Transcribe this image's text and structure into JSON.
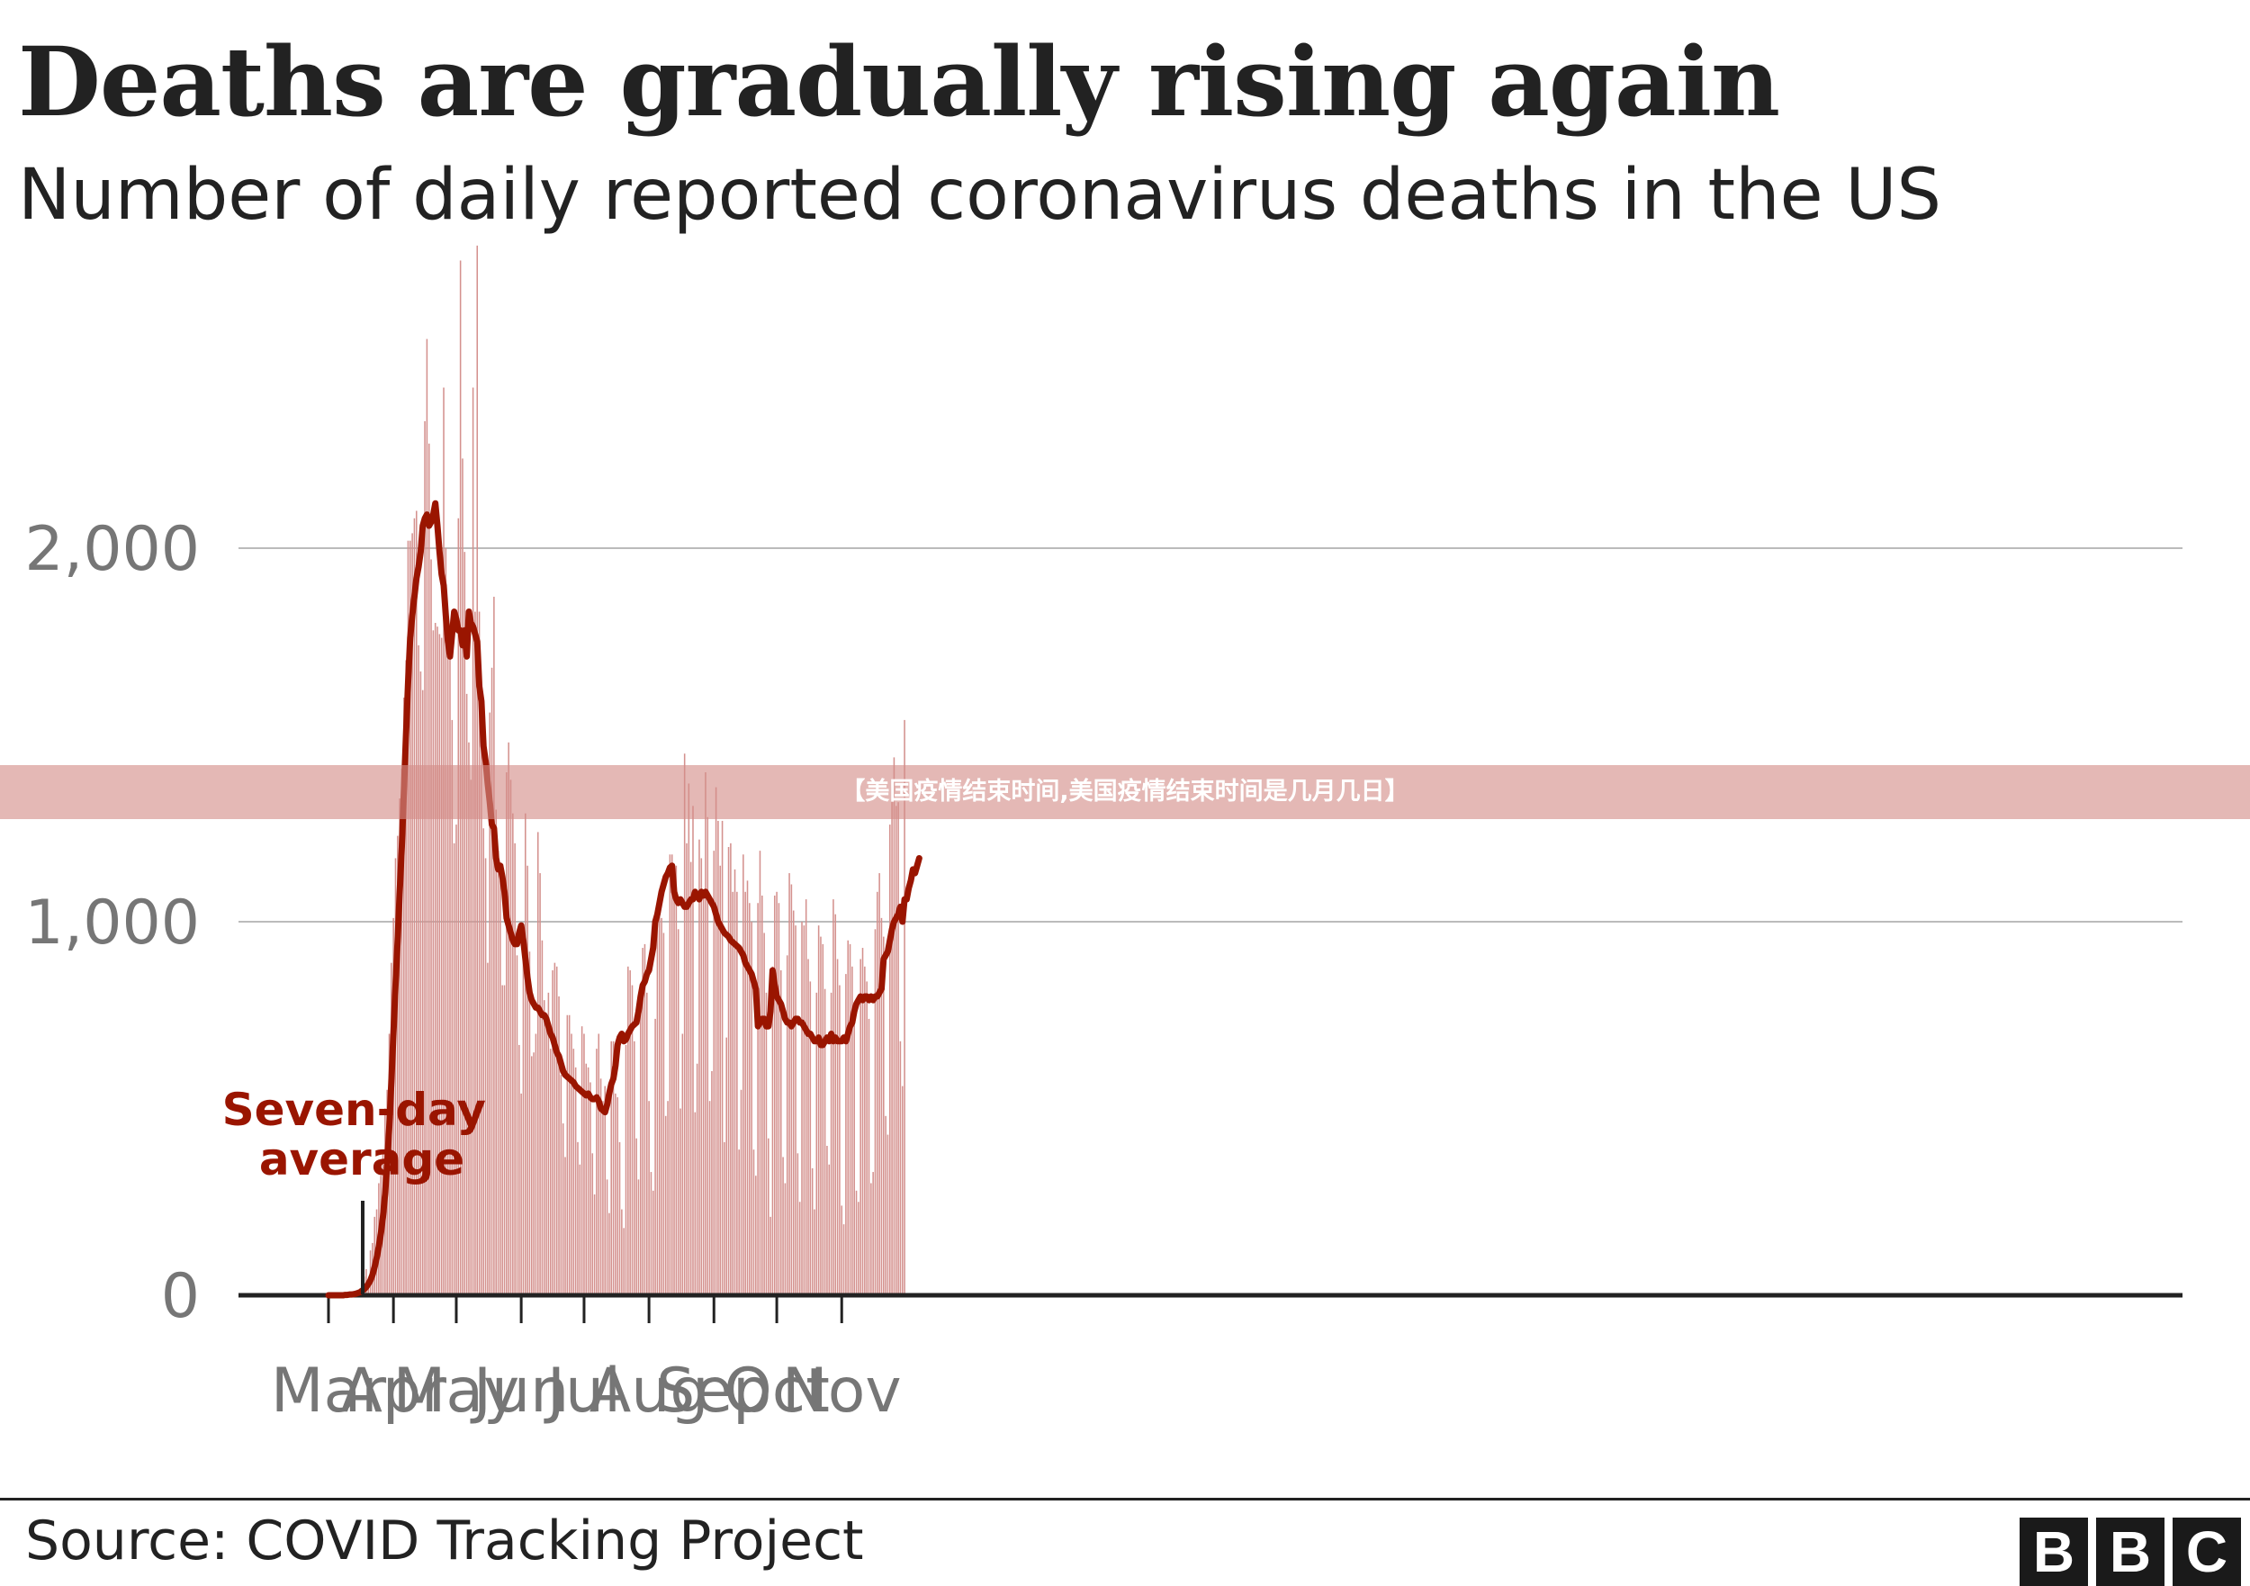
{
  "header": {
    "title": "Deaths are gradually rising again",
    "subtitle": "Number of daily reported coronavirus deaths in the US"
  },
  "footer": {
    "source": "Source: COVID Tracking Project",
    "logo": [
      "B",
      "B",
      "C"
    ]
  },
  "overlay": {
    "banner_text": "【美国疫情结束时间,美国疫情结束时间是几月几日】"
  },
  "colors": {
    "bar": "#d4918e",
    "line": "#9a1500",
    "annotation": "#9a1500",
    "grid": "#bbbbbb",
    "axis": "#222222",
    "tick_label": "#767676"
  },
  "chart_data": {
    "type": "bar",
    "title": "Deaths are gradually rising again",
    "subtitle": "Number of daily reported coronavirus deaths in the US",
    "x_start": "2020-03-01",
    "x_ticks": [
      "Mar",
      "Apr",
      "May",
      "Jun",
      "Jul",
      "Aug",
      "Sep",
      "Oct",
      "Nov"
    ],
    "y_ticks": [
      "0",
      "1,000",
      "2,000"
    ],
    "ylim": [
      0,
      2800
    ],
    "grid": true,
    "annotation": "Seven-day average",
    "series": [
      {
        "kind": "bar",
        "values": [
          0,
          0,
          0,
          0,
          0,
          0,
          0,
          1,
          1,
          2,
          3,
          3,
          5,
          8,
          12,
          18,
          25,
          50,
          70,
          40,
          120,
          140,
          210,
          230,
          300,
          320,
          390,
          500,
          550,
          700,
          890,
          1010,
          1170,
          1230,
          1330,
          1410,
          1600,
          1700,
          2020,
          2020,
          2040,
          2080,
          2100,
          1740,
          1670,
          1620,
          2340,
          2560,
          2280,
          1970,
          1780,
          1800,
          1790,
          1770,
          1760,
          2430,
          2000,
          1800,
          1710,
          1540,
          1210,
          1260,
          2080,
          2770,
          2240,
          1990,
          1610,
          1480,
          1380,
          2430,
          1830,
          2810,
          1830,
          1610,
          1250,
          1170,
          890,
          1560,
          1680,
          1870,
          1300,
          1190,
          1110,
          830,
          830,
          1400,
          1480,
          1380,
          1290,
          1210,
          910,
          670,
          540,
          980,
          1290,
          1150,
          920,
          640,
          650,
          700,
          1240,
          1130,
          950,
          790,
          740,
          810,
          660,
          870,
          890,
          880,
          800,
          590,
          460,
          370,
          750,
          750,
          700,
          660,
          610,
          410,
          350,
          720,
          700,
          620,
          610,
          570,
          380,
          270,
          660,
          700,
          580,
          520,
          560,
          310,
          220,
          680,
          680,
          540,
          530,
          410,
          230,
          180,
          670,
          880,
          870,
          830,
          680,
          420,
          310,
          830,
          930,
          940,
          810,
          520,
          330,
          280,
          740,
          1050,
          1060,
          1010,
          970,
          480,
          520,
          1180,
          1180,
          1060,
          1150,
          980,
          500,
          700,
          1450,
          1210,
          1370,
          1160,
          1310,
          490,
          620,
          1220,
          1170,
          1070,
          1400,
          1280,
          520,
          600,
          1190,
          1360,
          1270,
          1150,
          1270,
          410,
          690,
          1200,
          1210,
          1080,
          1140,
          1080,
          390,
          550,
          1180,
          1080,
          1110,
          1050,
          1000,
          390,
          320,
          1050,
          1190,
          1070,
          970,
          810,
          420,
          210,
          880,
          1070,
          1080,
          1050,
          870,
          370,
          300,
          910,
          1130,
          1100,
          1030,
          990,
          380,
          250,
          1000,
          990,
          1060,
          900,
          840,
          340,
          230,
          810,
          990,
          960,
          940,
          820,
          400,
          350,
          810,
          1060,
          1020,
          900,
          830,
          240,
          190,
          860,
          950,
          940,
          880,
          780,
          280,
          250,
          900,
          930,
          880,
          840,
          740,
          300,
          330,
          980,
          1080,
          1130,
          1010,
          960,
          480,
          430,
          1260,
          1360,
          1440,
          1310,
          1320,
          680,
          560,
          1540
        ]
      },
      {
        "kind": "line",
        "name": "Seven-day average",
        "values": [
          0,
          0,
          0,
          0,
          0,
          0,
          0,
          0,
          1,
          1,
          2,
          2,
          3,
          4,
          6,
          8,
          12,
          16,
          22,
          30,
          40,
          55,
          75,
          100,
          130,
          165,
          210,
          270,
          350,
          450,
          570,
          700,
          830,
          950,
          1080,
          1200,
          1350,
          1500,
          1640,
          1760,
          1820,
          1870,
          1920,
          1950,
          1990,
          2060,
          2080,
          2090,
          2060,
          2070,
          2090,
          2120,
          2060,
          1990,
          1930,
          1900,
          1820,
          1750,
          1710,
          1770,
          1830,
          1810,
          1780,
          1780,
          1740,
          1780,
          1710,
          1830,
          1800,
          1790,
          1770,
          1750,
          1630,
          1590,
          1470,
          1430,
          1370,
          1320,
          1260,
          1250,
          1170,
          1140,
          1150,
          1120,
          1080,
          1010,
          990,
          970,
          950,
          940,
          940,
          970,
          990,
          950,
          900,
          850,
          810,
          790,
          780,
          770,
          770,
          760,
          750,
          750,
          740,
          720,
          700,
          690,
          670,
          650,
          640,
          620,
          600,
          590,
          585,
          580,
          575,
          570,
          560,
          555,
          550,
          545,
          540,
          535,
          540,
          530,
          525,
          525,
          530,
          520,
          500,
          495,
          490,
          510,
          540,
          565,
          580,
          615,
          670,
          690,
          700,
          680,
          685,
          700,
          710,
          720,
          725,
          730,
          760,
          800,
          830,
          840,
          860,
          870,
          900,
          930,
          1000,
          1020,
          1050,
          1080,
          1100,
          1120,
          1130,
          1145,
          1150,
          1080,
          1060,
          1050,
          1060,
          1050,
          1040,
          1040,
          1050,
          1060,
          1060,
          1080,
          1070,
          1060,
          1080,
          1070,
          1080,
          1070,
          1060,
          1050,
          1040,
          1020,
          1000,
          990,
          980,
          970,
          965,
          960,
          950,
          945,
          940,
          935,
          930,
          920,
          910,
          890,
          880,
          870,
          860,
          840,
          820,
          720,
          730,
          740,
          740,
          720,
          720,
          760,
          870,
          830,
          800,
          790,
          780,
          760,
          740,
          730,
          730,
          720,
          730,
          740,
          740,
          730,
          730,
          720,
          710,
          700,
          700,
          690,
          680,
          680,
          690,
          670,
          670,
          680,
          690,
          680,
          700,
          680,
          690,
          680,
          680,
          680,
          690,
          680,
          700,
          720,
          730,
          760,
          780,
          790,
          800,
          790,
          800,
          800,
          790,
          800,
          790,
          800,
          800,
          810,
          820,
          900,
          910,
          920,
          950,
          980,
          1000,
          1010,
          1020,
          1040,
          1000,
          1060,
          1060,
          1090,
          1110,
          1140,
          1130,
          1150,
          1170
        ]
      }
    ]
  }
}
